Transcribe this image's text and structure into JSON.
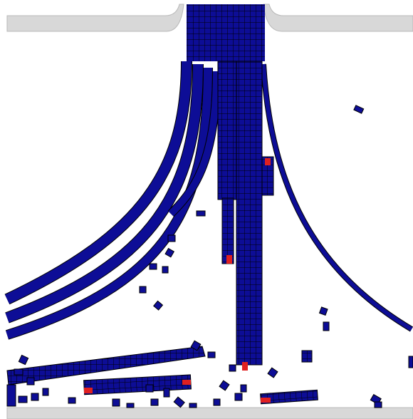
{
  "scene": {
    "kind": "particle-cutting-simulation",
    "colors": {
      "background": "#ffffff",
      "wall_fill": "#d8d8d8",
      "wall_edge": "#b8b8b8",
      "particle_fill": "#0d0d96",
      "particle_edge": "#000000",
      "failed_particle_fill": "#e02020"
    }
  }
}
